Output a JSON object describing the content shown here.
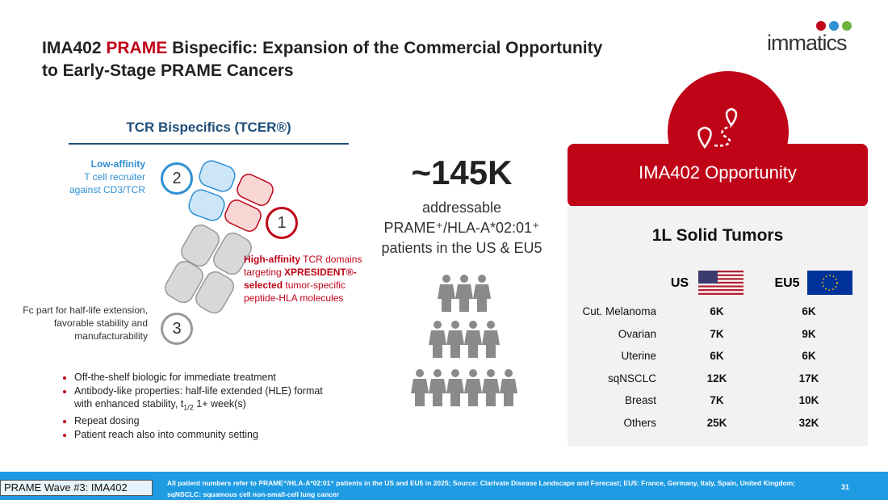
{
  "header": {
    "title_parts": [
      "IMA402",
      "PRAME",
      "Bispecific: Expansion of the Commercial Opportunity",
      "to Early-Stage PRAME Cancers"
    ],
    "logo": "immatics"
  },
  "left": {
    "heading": "TCR Bispecifics (TCER®)",
    "label_2": {
      "number": "2",
      "bold": "Low-affinity",
      "text": [
        "T cell recruiter",
        "against CD3/TCR"
      ]
    },
    "label_1": {
      "number": "1",
      "bold": "High-affinity",
      "text_1": "TCR domains",
      "text_2": "targeting",
      "bold_2": "XPRESIDENT®-",
      "bold_3": "selected",
      "text_3": "tumor-specific",
      "text_4": "peptide-HLA molecules"
    },
    "label_3": {
      "number": "3",
      "text": [
        "Fc part for half-life extension,",
        "favorable stability and",
        "manufacturability"
      ]
    },
    "bullets": [
      "Off-the-shelf biologic for immediate treatment",
      "Antibody-like properties: half-life extended (HLE) format",
      "with enhanced stability, t",
      "1/2",
      " 1+ week(s)",
      "Repeat dosing",
      "Patient reach also into community setting"
    ]
  },
  "middle": {
    "number": "~145K",
    "lines": [
      "addressable",
      "PRAME⁺/HLA-A*02:01⁺",
      "patients in the US & EU5"
    ]
  },
  "right": {
    "header": "IMA402 Opportunity",
    "subtitle": "1L Solid Tumors",
    "columns": [
      "US",
      "EU5"
    ],
    "rows": [
      [
        "Cut. Melanoma",
        "6K",
        "6K"
      ],
      [
        "Ovarian",
        "7K",
        "9K"
      ],
      [
        "Uterine",
        "6K",
        "6K"
      ],
      [
        "sqNSCLC",
        "12K",
        "17K"
      ],
      [
        "Breast",
        "7K",
        "10K"
      ],
      [
        "Others",
        "25K",
        "32K"
      ]
    ]
  },
  "footer": {
    "tag": "PRAME Wave #3: IMA402",
    "note": "All patient numbers refer to PRAME⁺/HLA-A*02:01⁺ patients in the US and EU5 in 2025; Source: Clarivate Disease Landscape and Forecast; EU5: France, Germany, Italy, Spain, United Kingdom; sqNSCLC: squamous cell non-small-cell lung cancer",
    "page": "31"
  }
}
